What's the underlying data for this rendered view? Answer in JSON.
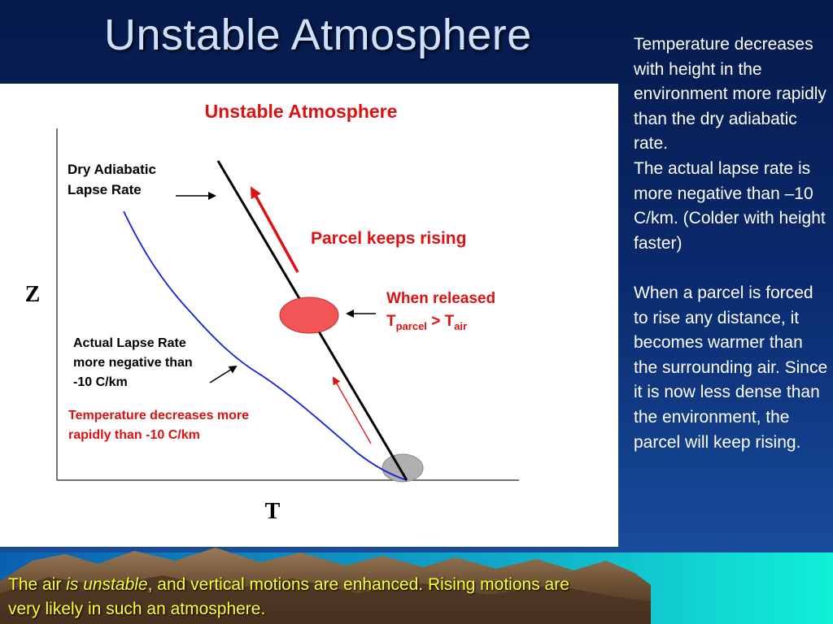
{
  "slide": {
    "title": "Unstable Atmosphere",
    "side_text": "Temperature decreases with height in the environment more rapidly than the dry adiabatic rate.\nThe actual lapse rate is more negative than –10 C/km. (Colder with height faster)\n\nWhen a parcel is forced to rise any distance, it becomes warmer than the surrounding air. Since it is now less dense than the environment, the parcel will keep rising.",
    "bottom_text": {
      "before": "The air ",
      "emphasis": "is unstable",
      "after": ", and vertical motions are enhanced. Rising motions are very likely in such an atmosphere."
    }
  },
  "diagram": {
    "title": "Unstable Atmosphere",
    "y_axis_label": "Z",
    "x_axis_label": "T",
    "dry_adiabatic_label": [
      "Dry Adiabatic",
      "Lapse Rate"
    ],
    "actual_lapse_label": [
      "Actual Lapse Rate",
      "more negative than",
      "-10 C/km"
    ],
    "temp_decrease_label": [
      "Temperature decreases more",
      "rapidly than -10 C/km"
    ],
    "parcel_rising_label": "Parcel keeps rising",
    "when_released_label": "When released",
    "temp_relation": {
      "t1": "T",
      "sub1": "parcel",
      "op": " > ",
      "t2": "T",
      "sub2": "air"
    }
  },
  "colors": {
    "accent_red": "#dd1111",
    "parcel_fill": "#f25555",
    "ground_parcel_fill": "#b0b0b0",
    "actual_lapse_line": "#1122dd",
    "side_text": "#ffffff",
    "bottom_text": "#ffff33"
  }
}
